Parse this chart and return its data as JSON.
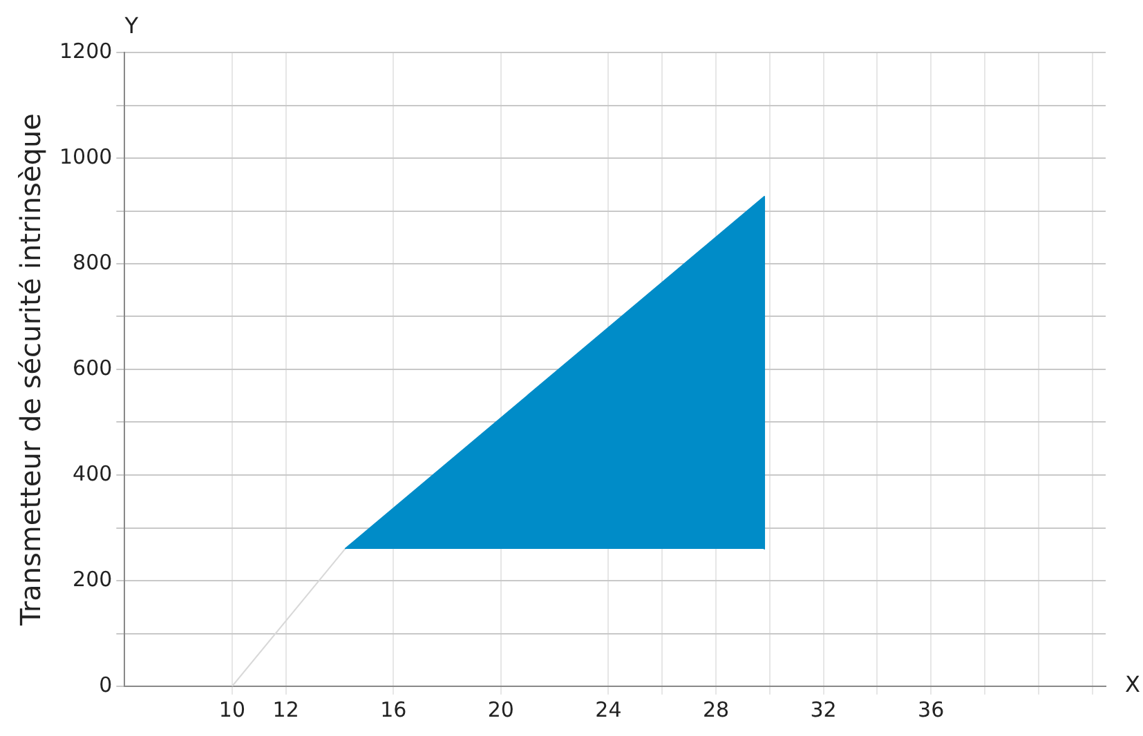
{
  "chart_data": {
    "type": "area",
    "xlabel": "X",
    "ylabel": "Transmetteur de sécurité intrinsèque",
    "annotations": [
      "Y"
    ],
    "series": [
      {
        "type": "line",
        "color": "#d8d8d8",
        "x": [
          10,
          14.2
        ],
        "values": [
          0,
          260
        ]
      },
      {
        "type": "area",
        "color": "#008cc8",
        "x": [
          14.2,
          29.8,
          29.8
        ],
        "values": [
          260,
          927,
          260
        ]
      }
    ],
    "xlim": [
      6,
      42.5
    ],
    "xticks": [
      10,
      12,
      16,
      20,
      24,
      {
        "value": 26,
        "label": null
      },
      28,
      {
        "value": 30,
        "label": null
      },
      32,
      {
        "value": 34,
        "label": null
      },
      36,
      {
        "value": 38,
        "label": null
      },
      {
        "value": 40,
        "label": null
      },
      {
        "value": 42,
        "label": null
      }
    ],
    "ylim": [
      0,
      1200
    ],
    "yticks": [
      0,
      {
        "value": 100,
        "label": null
      },
      200,
      {
        "value": 300,
        "label": null
      },
      400,
      {
        "value": 500,
        "label": null
      },
      600,
      {
        "value": 700,
        "label": null
      },
      800,
      {
        "value": 900,
        "label": null
      },
      1000,
      {
        "value": 1100,
        "label": null
      },
      1200
    ],
    "grid": true,
    "legend": false
  }
}
